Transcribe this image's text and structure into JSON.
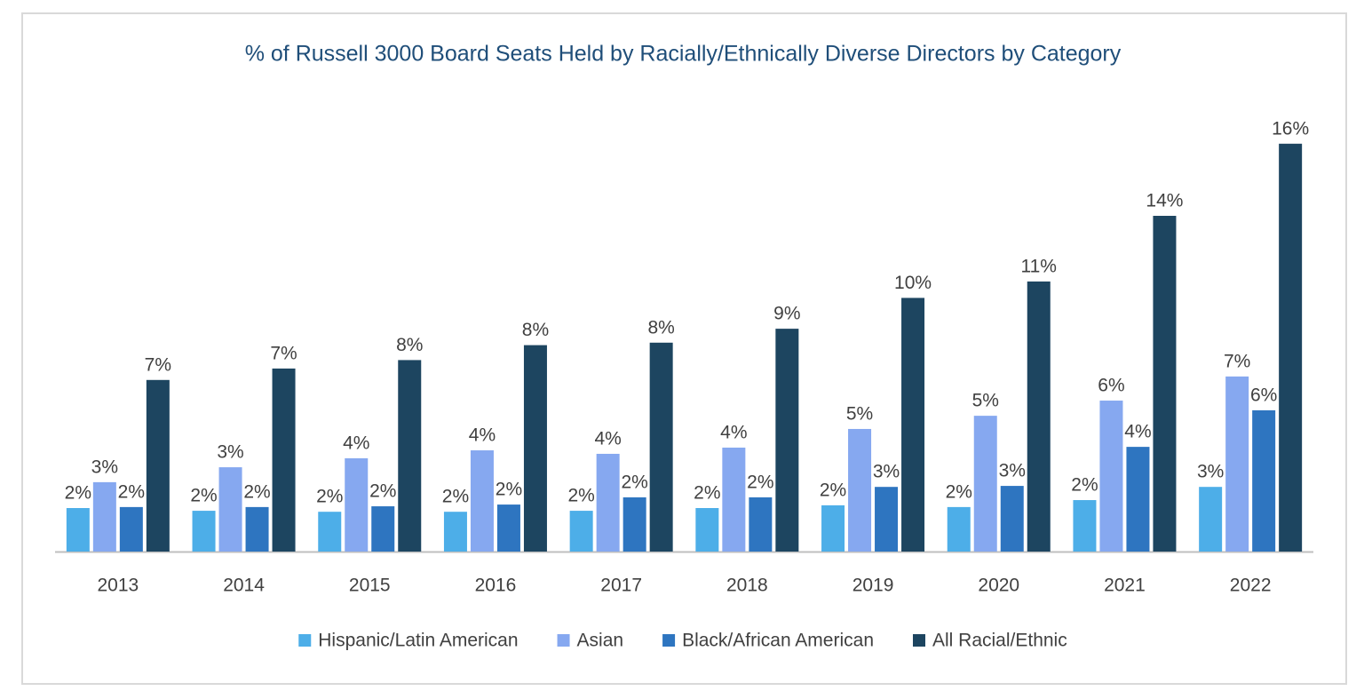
{
  "chart_data": {
    "type": "bar",
    "title": "% of Russell 3000 Board Seats Held by Racially/Ethnically Diverse Directors by Category",
    "categories": [
      "2013",
      "2014",
      "2015",
      "2016",
      "2017",
      "2018",
      "2019",
      "2020",
      "2021",
      "2022"
    ],
    "series": [
      {
        "name": "Hispanic/Latin American",
        "color": "#4daee8",
        "values": [
          1.75,
          1.64,
          1.6,
          1.6,
          1.64,
          1.75,
          1.86,
          1.79,
          2.07,
          2.6
        ],
        "value_labels": [
          "2%",
          "2%",
          "2%",
          "2%",
          "2%",
          "2%",
          "2%",
          "2%",
          "2%",
          "3%"
        ]
      },
      {
        "name": "Asian",
        "color": "#86a8f0",
        "values": [
          2.79,
          3.39,
          3.75,
          4.07,
          3.93,
          4.18,
          4.93,
          5.46,
          6.07,
          7.04
        ],
        "value_labels": [
          "3%",
          "3%",
          "4%",
          "4%",
          "4%",
          "4%",
          "5%",
          "5%",
          "6%",
          "7%"
        ]
      },
      {
        "name": "Black/African American",
        "color": "#2e75c0",
        "values": [
          1.79,
          1.79,
          1.82,
          1.89,
          2.18,
          2.18,
          2.6,
          2.64,
          4.21,
          5.68
        ],
        "value_labels": [
          "2%",
          "2%",
          "2%",
          "2%",
          "2%",
          "2%",
          "3%",
          "3%",
          "4%",
          "6%"
        ]
      },
      {
        "name": "All Racial/Ethnic",
        "color": "#1d4560",
        "values": [
          6.9,
          7.36,
          7.7,
          8.3,
          8.4,
          8.96,
          10.2,
          10.86,
          13.5,
          16.4
        ],
        "value_labels": [
          "7%",
          "7%",
          "8%",
          "8%",
          "8%",
          "9%",
          "10%",
          "11%",
          "14%",
          "16%"
        ]
      }
    ],
    "ylim": [
      0,
      18
    ]
  }
}
